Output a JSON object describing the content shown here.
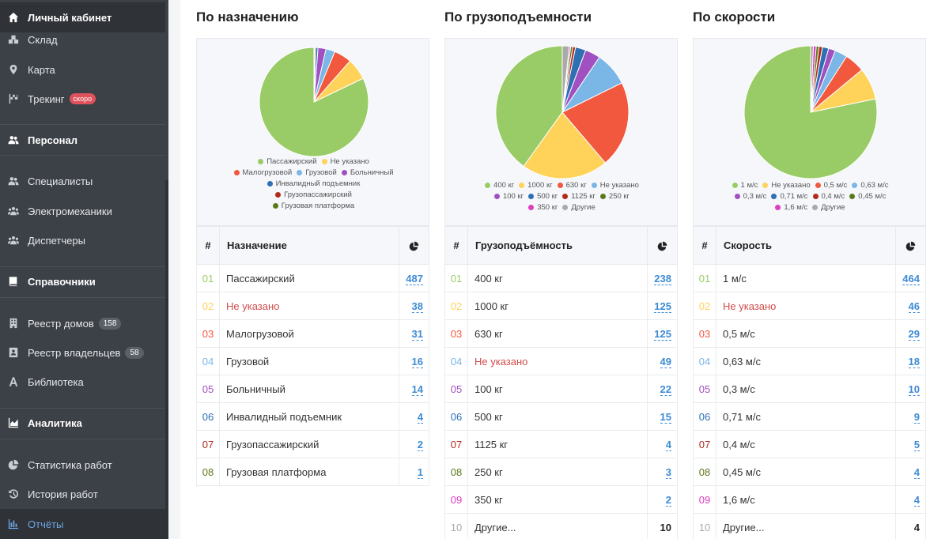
{
  "sidebar": {
    "top": "Личный кабинет",
    "items": [
      {
        "label": "Склад"
      },
      {
        "label": "Карта"
      },
      {
        "label": "Трекинг",
        "badge": "скоро"
      },
      {
        "label": "Персонал"
      },
      {
        "label": "Специалисты"
      },
      {
        "label": "Электромеханики"
      },
      {
        "label": "Диспетчеры"
      },
      {
        "label": "Справочники"
      },
      {
        "label": "Реестр домов",
        "badge": "158"
      },
      {
        "label": "Реестр владельцев",
        "badge": "58"
      },
      {
        "label": "Библиотека"
      },
      {
        "label": "Аналитика"
      },
      {
        "label": "Статистика работ"
      },
      {
        "label": "История работ"
      },
      {
        "label": "Отчёты"
      }
    ]
  },
  "colors": {
    "c1": "#99cc66",
    "c2": "#ffd25a",
    "c3": "#f2583e",
    "c4": "#7ab6e6",
    "c5": "#a050c0",
    "c6": "#2f6fb3",
    "c7": "#b22a1e",
    "c8": "#5a7a1a",
    "c9": "#e03cc0",
    "c10": "#aaaaaa",
    "accent": "#3d8bd4"
  },
  "columns": [
    {
      "title": "По назначению",
      "header": {
        "num": "#",
        "name": "Назначение"
      },
      "rows": [
        {
          "num": "01",
          "name": "Пассажирский",
          "value": "487"
        },
        {
          "num": "02",
          "name": "Не указано",
          "value": "38"
        },
        {
          "num": "03",
          "name": "Малогрузовой",
          "value": "31"
        },
        {
          "num": "04",
          "name": "Грузовой",
          "value": "16"
        },
        {
          "num": "05",
          "name": "Больничный",
          "value": "14"
        },
        {
          "num": "06",
          "name": "Инвалидный подъемник",
          "value": "4"
        },
        {
          "num": "07",
          "name": "Грузопассажирский",
          "value": "2"
        },
        {
          "num": "08",
          "name": "Грузовая платформа",
          "value": "1"
        }
      ]
    },
    {
      "title": "По грузоподъемности",
      "header": {
        "num": "#",
        "name": "Грузоподъёмность"
      },
      "rows": [
        {
          "num": "01",
          "name": "400 кг",
          "value": "238"
        },
        {
          "num": "02",
          "name": "1000 кг",
          "value": "125"
        },
        {
          "num": "03",
          "name": "630 кг",
          "value": "125"
        },
        {
          "num": "04",
          "name": "Не указано",
          "value": "49"
        },
        {
          "num": "05",
          "name": "100 кг",
          "value": "22"
        },
        {
          "num": "06",
          "name": "500 кг",
          "value": "15"
        },
        {
          "num": "07",
          "name": "1125 кг",
          "value": "4"
        },
        {
          "num": "08",
          "name": "250 кг",
          "value": "3"
        },
        {
          "num": "09",
          "name": "350 кг",
          "value": "2"
        },
        {
          "num": "10",
          "name": "Другие...",
          "value": "10"
        }
      ]
    },
    {
      "title": "По скорости",
      "header": {
        "num": "#",
        "name": "Скорость"
      },
      "rows": [
        {
          "num": "01",
          "name": "1 м/с",
          "value": "464"
        },
        {
          "num": "02",
          "name": "Не указано",
          "value": "46"
        },
        {
          "num": "03",
          "name": "0,5 м/с",
          "value": "29"
        },
        {
          "num": "04",
          "name": "0,63 м/с",
          "value": "18"
        },
        {
          "num": "05",
          "name": "0,3 м/с",
          "value": "10"
        },
        {
          "num": "06",
          "name": "0,71 м/с",
          "value": "9"
        },
        {
          "num": "07",
          "name": "0,4 м/с",
          "value": "5"
        },
        {
          "num": "08",
          "name": "0,45 м/с",
          "value": "4"
        },
        {
          "num": "09",
          "name": "1,6 м/с",
          "value": "4"
        },
        {
          "num": "10",
          "name": "Другие...",
          "value": "4"
        }
      ]
    }
  ],
  "chart_data": [
    {
      "type": "pie",
      "categories": [
        "Пассажирский",
        "Не указано",
        "Малогрузовой",
        "Грузовой",
        "Больничный",
        "Инвалидный подъемник",
        "Грузопассажирский",
        "Грузовая платформа"
      ],
      "values": [
        487,
        38,
        31,
        16,
        14,
        4,
        2,
        1
      ],
      "colors": [
        "#99cc66",
        "#ffd25a",
        "#f2583e",
        "#7ab6e6",
        "#a050c0",
        "#2f6fb3",
        "#b22a1e",
        "#5a7a1a"
      ],
      "legend_rows": [
        [
          0,
          1
        ],
        [
          2,
          3,
          4
        ],
        [
          5
        ],
        [
          6
        ],
        [
          7
        ]
      ]
    },
    {
      "type": "pie",
      "categories": [
        "400 кг",
        "1000 кг",
        "630 кг",
        "Не указано",
        "100 кг",
        "500 кг",
        "1125 кг",
        "250 кг",
        "350 кг",
        "Другие"
      ],
      "values": [
        238,
        125,
        125,
        49,
        22,
        15,
        4,
        3,
        2,
        10
      ],
      "colors": [
        "#99cc66",
        "#ffd25a",
        "#f2583e",
        "#7ab6e6",
        "#a050c0",
        "#2f6fb3",
        "#b22a1e",
        "#5a7a1a",
        "#e03cc0",
        "#aaaaaa"
      ],
      "legend_rows": [
        [
          0,
          1,
          2,
          3
        ],
        [
          4,
          5,
          6,
          7
        ],
        [
          8,
          9
        ]
      ]
    },
    {
      "type": "pie",
      "categories": [
        "1 м/с",
        "Не указано",
        "0,5 м/с",
        "0,63 м/с",
        "0,3 м/с",
        "0,71 м/с",
        "0,4 м/с",
        "0,45 м/с",
        "1,6 м/с",
        "Другие"
      ],
      "values": [
        464,
        46,
        29,
        18,
        10,
        9,
        5,
        4,
        4,
        4
      ],
      "colors": [
        "#99cc66",
        "#ffd25a",
        "#f2583e",
        "#7ab6e6",
        "#a050c0",
        "#2f6fb3",
        "#b22a1e",
        "#5a7a1a",
        "#e03cc0",
        "#aaaaaa"
      ],
      "legend_rows": [
        [
          0,
          1,
          2,
          3
        ],
        [
          4,
          5,
          6,
          7
        ],
        [
          8,
          9
        ]
      ]
    }
  ]
}
